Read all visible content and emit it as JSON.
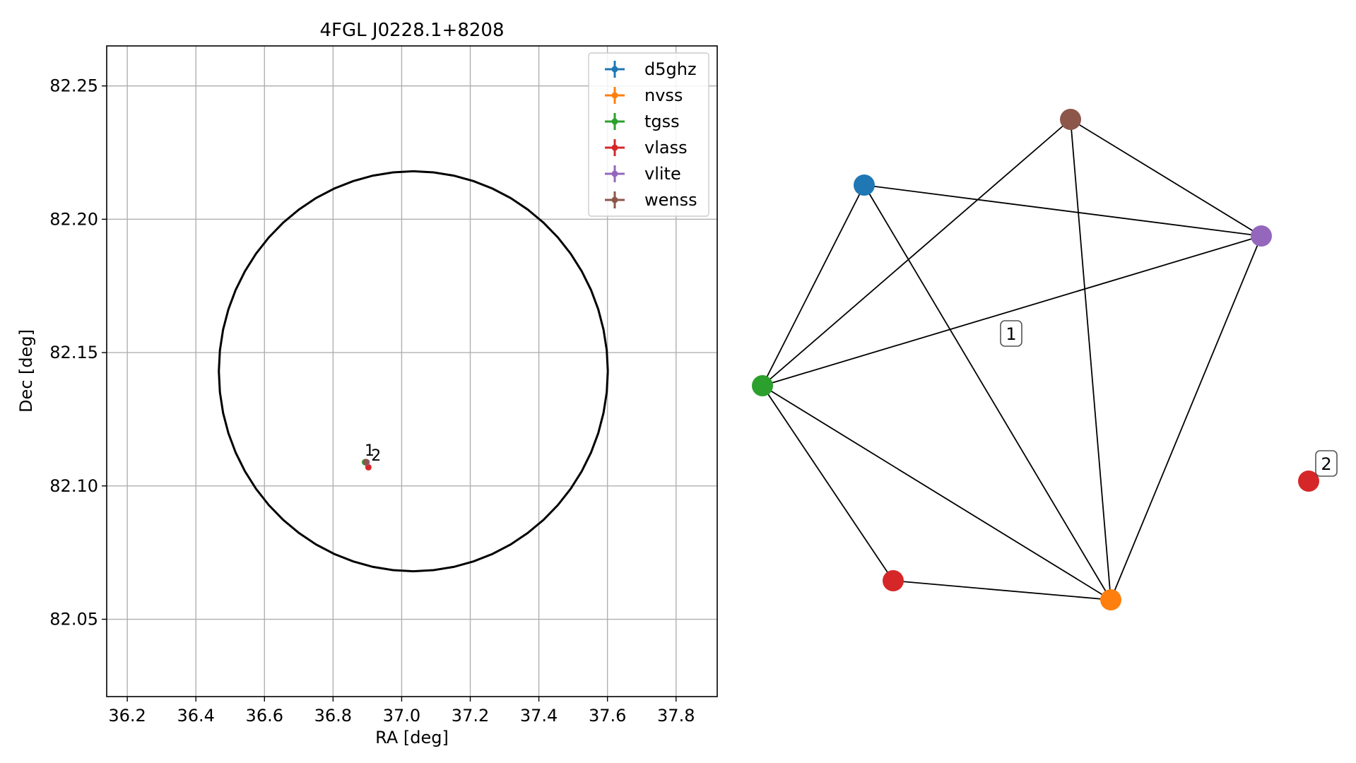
{
  "chart_data": [
    {
      "type": "scatter",
      "title": "4FGL J0228.1+8208",
      "xlabel": "RA [deg]",
      "ylabel": "Dec [deg]",
      "xlim": [
        36.14,
        37.92
      ],
      "ylim": [
        82.021,
        82.265
      ],
      "xticks": [
        "36.2",
        "36.4",
        "36.6",
        "36.8",
        "37.0",
        "37.2",
        "37.4",
        "37.6",
        "37.8"
      ],
      "yticks": [
        "82.05",
        "82.10",
        "82.15",
        "82.20",
        "82.25"
      ],
      "grid": true,
      "legend_position": "top-right",
      "ellipse": {
        "center_ra": 37.034,
        "center_dec": 82.143,
        "semi_axis_ra": 0.567,
        "semi_axis_dec": 0.075,
        "color": "#000000"
      },
      "series": [
        {
          "name": "d5ghz",
          "color": "#1f77b4",
          "points": [
            {
              "ra": 36.897,
              "dec": 82.1087
            }
          ]
        },
        {
          "name": "nvss",
          "color": "#ff7f0e",
          "points": [
            {
              "ra": 36.895,
              "dec": 82.109
            }
          ]
        },
        {
          "name": "tgss",
          "color": "#2ca02c",
          "points": [
            {
              "ra": 36.893,
              "dec": 82.1089
            }
          ]
        },
        {
          "name": "vlass",
          "color": "#d62728",
          "points": [
            {
              "ra": 36.903,
              "dec": 82.107
            }
          ]
        },
        {
          "name": "vlite",
          "color": "#9467bd",
          "points": [
            {
              "ra": 36.898,
              "dec": 82.1089
            }
          ]
        },
        {
          "name": "wenss",
          "color": "#8c564b",
          "points": [
            {
              "ra": 36.896,
              "dec": 82.109
            }
          ]
        }
      ],
      "annotations": [
        {
          "text": "1",
          "ra": 36.892,
          "dec": 82.1113
        },
        {
          "text": "2",
          "ra": 36.911,
          "dec": 82.1095
        }
      ]
    },
    {
      "type": "network",
      "nodes": [
        {
          "id": "d5ghz",
          "color": "#1f77b4"
        },
        {
          "id": "wenss",
          "color": "#8c564b"
        },
        {
          "id": "vlite",
          "color": "#9467bd"
        },
        {
          "id": "tgss",
          "color": "#2ca02c"
        },
        {
          "id": "vlass_1",
          "color": "#d62728"
        },
        {
          "id": "nvss",
          "color": "#ff7f0e"
        },
        {
          "id": "vlass_2",
          "color": "#d62728"
        }
      ],
      "edges": [
        [
          "d5ghz",
          "vlite"
        ],
        [
          "d5ghz",
          "tgss"
        ],
        [
          "d5ghz",
          "nvss"
        ],
        [
          "wenss",
          "tgss"
        ],
        [
          "wenss",
          "vlite"
        ],
        [
          "wenss",
          "nvss"
        ],
        [
          "vlite",
          "tgss"
        ],
        [
          "vlite",
          "nvss"
        ],
        [
          "tgss",
          "vlass_1"
        ],
        [
          "tgss",
          "nvss"
        ],
        [
          "vlass_1",
          "nvss"
        ]
      ],
      "group_labels": [
        {
          "text": "1",
          "group": [
            "d5ghz",
            "wenss",
            "vlite",
            "tgss",
            "vlass_1",
            "nvss"
          ]
        },
        {
          "text": "2",
          "group": [
            "vlass_2"
          ]
        }
      ]
    }
  ]
}
